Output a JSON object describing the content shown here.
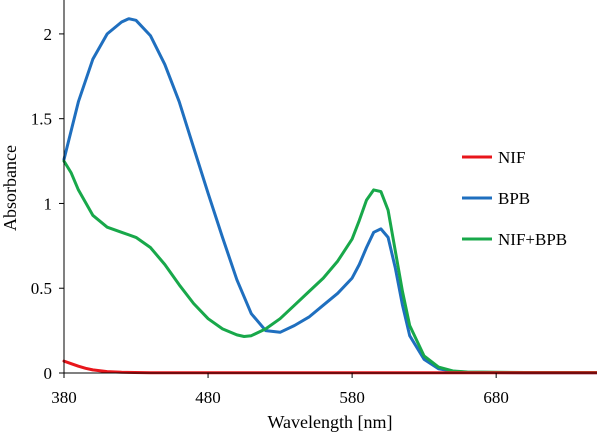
{
  "chart_data": {
    "type": "line",
    "xlabel": "Wavelength [nm]",
    "ylabel": "Absorbance",
    "xlim": [
      380,
      750
    ],
    "ylim": [
      0,
      2.2
    ],
    "x_ticks": [
      "380",
      "480",
      "580",
      "680"
    ],
    "x_tick_values": [
      380,
      480,
      580,
      680
    ],
    "y_ticks": [
      "0",
      "0.5",
      "1",
      "1.5",
      "2"
    ],
    "y_tick_values": [
      0,
      0.5,
      1,
      1.5,
      2
    ],
    "grid": false,
    "legend_position": "right",
    "series": [
      {
        "name": "NIF",
        "color": "#e8161b",
        "x": [
          380,
          385,
          390,
          395,
          400,
          410,
          420,
          440,
          460,
          500,
          600,
          700,
          750
        ],
        "y": [
          0.07,
          0.055,
          0.04,
          0.028,
          0.018,
          0.008,
          0.004,
          0.002,
          0.002,
          0.001,
          0.001,
          0.001,
          0.001
        ]
      },
      {
        "name": "BPB",
        "color": "#1f6fbf",
        "x": [
          380,
          390,
          400,
          410,
          420,
          425,
          430,
          440,
          450,
          460,
          470,
          480,
          490,
          500,
          510,
          520,
          530,
          540,
          550,
          560,
          570,
          580,
          585,
          590,
          595,
          600,
          605,
          610,
          615,
          620,
          630,
          640,
          650,
          660,
          680,
          700,
          750
        ],
        "y": [
          1.26,
          1.6,
          1.85,
          2.0,
          2.07,
          2.09,
          2.08,
          1.99,
          1.82,
          1.6,
          1.33,
          1.06,
          0.8,
          0.55,
          0.35,
          0.25,
          0.24,
          0.28,
          0.33,
          0.4,
          0.47,
          0.56,
          0.64,
          0.74,
          0.83,
          0.85,
          0.8,
          0.62,
          0.4,
          0.22,
          0.08,
          0.025,
          0.01,
          0.005,
          0.003,
          0.002,
          0.002
        ]
      },
      {
        "name": "NIF+BPB",
        "color": "#18a84a",
        "x": [
          380,
          385,
          390,
          400,
          410,
          420,
          430,
          440,
          450,
          460,
          470,
          480,
          490,
          500,
          505,
          510,
          520,
          530,
          540,
          550,
          560,
          570,
          580,
          585,
          590,
          595,
          600,
          605,
          610,
          615,
          620,
          630,
          640,
          650,
          660,
          680,
          700,
          750
        ],
        "y": [
          1.25,
          1.18,
          1.08,
          0.93,
          0.86,
          0.83,
          0.8,
          0.74,
          0.64,
          0.52,
          0.41,
          0.32,
          0.26,
          0.225,
          0.215,
          0.22,
          0.26,
          0.32,
          0.4,
          0.48,
          0.56,
          0.66,
          0.79,
          0.9,
          1.02,
          1.08,
          1.07,
          0.96,
          0.72,
          0.48,
          0.28,
          0.1,
          0.035,
          0.012,
          0.006,
          0.004,
          0.003,
          0.003
        ]
      }
    ]
  }
}
